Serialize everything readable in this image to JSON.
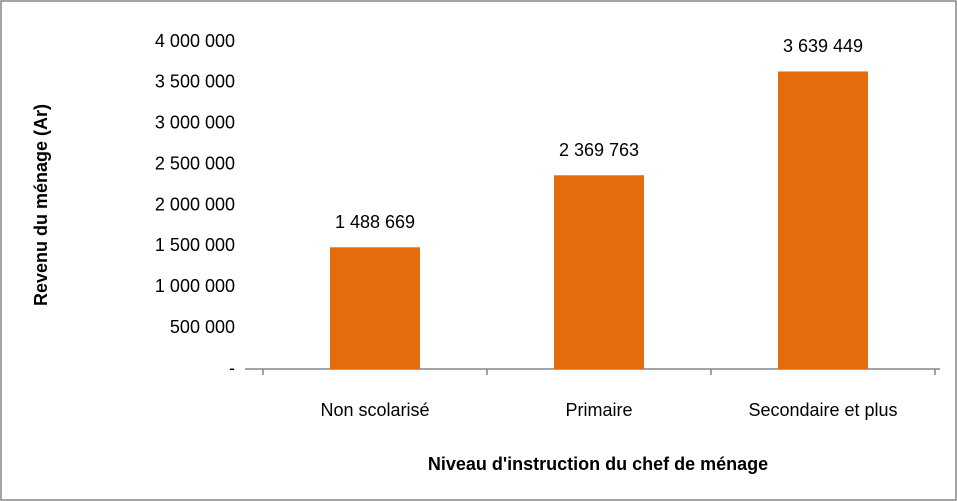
{
  "chart_data": {
    "type": "bar",
    "x_label": "Niveau d'instruction du chef de ménage",
    "y_label": "Revenu du ménage (Ar)",
    "categories": [
      "Non scolarisé",
      "Primaire",
      "Secondaire et plus"
    ],
    "values": [
      1488669,
      2369763,
      3639449
    ],
    "value_labels": [
      "1 488 669",
      "2 369 763",
      "3 639 449"
    ],
    "color": "#e46c0a",
    "ylim": [
      0,
      4000000
    ],
    "yticks": [
      {
        "value": 0,
        "label": "-"
      },
      {
        "value": 500000,
        "label": "500 000"
      },
      {
        "value": 1000000,
        "label": "1 000 000"
      },
      {
        "value": 1500000,
        "label": "1 500 000"
      },
      {
        "value": 2000000,
        "label": "2 000 000"
      },
      {
        "value": 2500000,
        "label": "2 500 000"
      },
      {
        "value": 3000000,
        "label": "3 000 000"
      },
      {
        "value": 3500000,
        "label": "3 500 000"
      },
      {
        "value": 4000000,
        "label": "4 000 000"
      }
    ],
    "grid": false
  }
}
